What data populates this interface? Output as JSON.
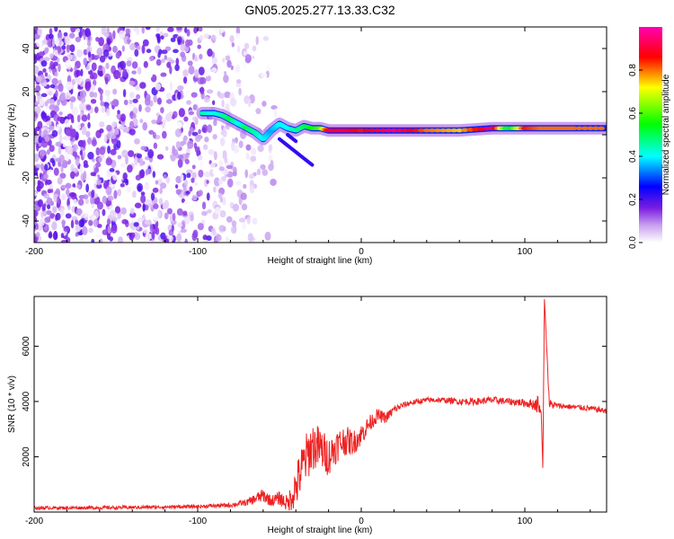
{
  "title": "GN05.2025.277.13.33.C32",
  "chart_data": [
    {
      "type": "heatmap",
      "xlabel": "Height of straight line (km)",
      "ylabel": "Frequency (Hz)",
      "xlim": [
        -200,
        150
      ],
      "ylim": [
        -50,
        50
      ],
      "xticks": [
        -200,
        -100,
        0,
        100
      ],
      "yticks": [
        -40,
        -20,
        0,
        20,
        40
      ],
      "colorbar": {
        "label": "Normalized spectral amplitude",
        "range": [
          0.0,
          1.0
        ],
        "ticks": [
          0.0,
          0.2,
          0.4,
          0.6,
          0.8
        ],
        "tick_labels": [
          "0.0",
          "0.2",
          "0.4",
          "0.6",
          "0.8"
        ],
        "colormap": [
          "#ffffff",
          "#7a1de0",
          "#0000ff",
          "#00ffff",
          "#00ff00",
          "#ffff00",
          "#ff0000",
          "#ff00b4"
        ]
      },
      "signal_ridge": {
        "x": [
          -97,
          -90,
          -85,
          -80,
          -75,
          -70,
          -65,
          -60,
          -55,
          -50,
          -45,
          -40,
          -35,
          -30,
          -25,
          -20,
          -10,
          0,
          20,
          40,
          60,
          80,
          90,
          100,
          110,
          120,
          130,
          150
        ],
        "freq": [
          10,
          10,
          9,
          7,
          5,
          3,
          1,
          -2,
          2,
          5,
          3,
          2,
          4,
          3,
          3,
          2,
          2,
          2,
          2,
          2,
          2,
          3,
          3,
          3,
          3,
          3,
          3,
          3
        ],
        "amplitude": [
          0.45,
          0.4,
          0.45,
          0.5,
          0.4,
          0.5,
          0.45,
          0.4,
          0.35,
          0.4,
          0.4,
          0.45,
          0.5,
          0.55,
          0.6,
          0.9,
          0.9,
          0.85,
          0.95,
          0.8,
          0.75,
          0.95,
          0.5,
          0.85,
          0.8,
          0.8,
          0.8,
          0.8
        ]
      },
      "branch_features": [
        {
          "x": [
            -50,
            -45,
            -40,
            -35,
            -30
          ],
          "freq": [
            -2,
            -5,
            -8,
            -11,
            -14
          ]
        },
        {
          "x": [
            -45,
            -40
          ],
          "freq": [
            0,
            -3
          ]
        }
      ],
      "noise_region": {
        "x_from": -200,
        "x_to": -55,
        "amplitude": [
          0.0,
          0.2
        ]
      }
    },
    {
      "type": "line",
      "xlabel": "Height of straight line (km)",
      "ylabel": "SNR (10 * v/v)",
      "xlim": [
        -200,
        150
      ],
      "ylim": [
        0,
        7800
      ],
      "xticks": [
        -200,
        -100,
        0,
        100
      ],
      "yticks": [
        2000,
        4000,
        6000
      ],
      "series": [
        {
          "name": "SNR",
          "color": "#ee2222",
          "x": [
            -200,
            -150,
            -100,
            -80,
            -70,
            -60,
            -55,
            -50,
            -45,
            -40,
            -35,
            -30,
            -25,
            -20,
            -15,
            -10,
            -5,
            0,
            5,
            10,
            15,
            20,
            25,
            30,
            35,
            40,
            50,
            60,
            70,
            80,
            90,
            100,
            105,
            108,
            110,
            111,
            112,
            115,
            120,
            130,
            140,
            150
          ],
          "y": [
            150,
            160,
            200,
            250,
            350,
            600,
            400,
            500,
            300,
            900,
            1800,
            2400,
            2300,
            2000,
            2400,
            2600,
            2500,
            2800,
            3200,
            3500,
            3400,
            3700,
            3850,
            3950,
            4000,
            4050,
            4050,
            4000,
            4000,
            4050,
            4000,
            3950,
            3900,
            3900,
            3600,
            1600,
            7700,
            3900,
            3850,
            3800,
            3750,
            3650
          ],
          "noise_amplitude": [
            60,
            60,
            60,
            80,
            120,
            250,
            200,
            250,
            300,
            800,
            900,
            900,
            800,
            700,
            600,
            550,
            450,
            400,
            300,
            250,
            200,
            150,
            120,
            100,
            100,
            100,
            100,
            120,
            120,
            130,
            130,
            140,
            200,
            350,
            0,
            0,
            0,
            200,
            100,
            100,
            100,
            100
          ]
        }
      ]
    }
  ]
}
